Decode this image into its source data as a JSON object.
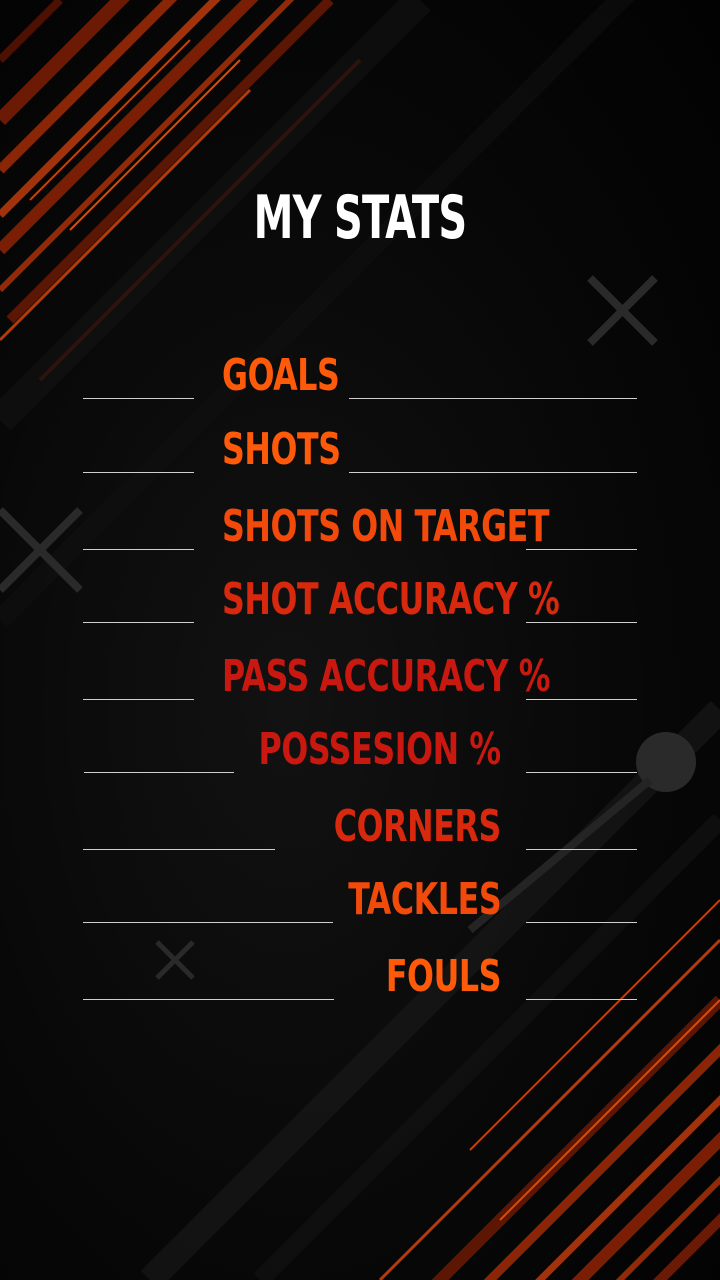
{
  "title": "MY STATS",
  "colors": {
    "background": "#060606",
    "orange": "#ff5a0a",
    "dark_red": "#c8180f",
    "line": "#cfcfcf"
  },
  "stats": [
    {
      "label": "GOALS",
      "value": ""
    },
    {
      "label": "SHOTS",
      "value": ""
    },
    {
      "label": "SHOTS ON TARGET",
      "value": ""
    },
    {
      "label": "SHOT ACCURACY %",
      "value": ""
    },
    {
      "label": "PASS ACCURACY %",
      "value": ""
    },
    {
      "label": "POSSESION %",
      "value": ""
    },
    {
      "label": "CORNERS",
      "value": ""
    },
    {
      "label": "TACKLES",
      "value": ""
    },
    {
      "label": "FOULS",
      "value": ""
    }
  ]
}
